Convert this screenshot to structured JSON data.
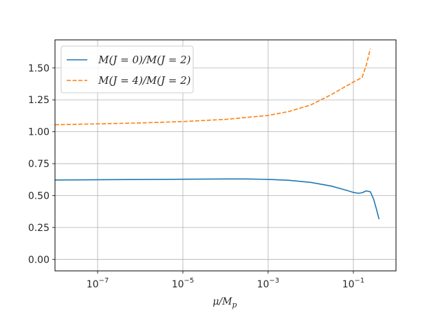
{
  "chart_data": {
    "type": "line",
    "xscale": "log",
    "xlim": [
      1e-08,
      1.0
    ],
    "ylim": [
      -0.09,
      1.72
    ],
    "xticks": [
      {
        "value": 1e-07,
        "base": "10",
        "exp": "−7"
      },
      {
        "value": 1e-05,
        "base": "10",
        "exp": "−5"
      },
      {
        "value": 0.001,
        "base": "10",
        "exp": "−3"
      },
      {
        "value": 0.1,
        "base": "10",
        "exp": "−1"
      }
    ],
    "yticks": [
      0.0,
      0.25,
      0.5,
      0.75,
      1.0,
      1.25,
      1.5
    ],
    "ytick_labels": [
      "0.00",
      "0.25",
      "0.50",
      "0.75",
      "1.00",
      "1.25",
      "1.50"
    ],
    "xlabel": {
      "main": "μ/M",
      "sub": "p"
    },
    "ylabel": "",
    "grid": true,
    "legend_position": "upper-left",
    "series": [
      {
        "name": "M(J = 0)/M(J = 2)",
        "color": "#1f77b4",
        "style": "solid",
        "x": [
          1e-08,
          1e-07,
          1e-06,
          1e-05,
          0.0001,
          0.0003,
          0.001,
          0.003,
          0.01,
          0.03,
          0.06,
          0.1,
          0.13,
          0.16,
          0.2,
          0.25,
          0.3,
          0.35,
          0.4
        ],
        "y": [
          0.622,
          0.624,
          0.626,
          0.628,
          0.63,
          0.63,
          0.627,
          0.62,
          0.603,
          0.575,
          0.547,
          0.525,
          0.518,
          0.522,
          0.537,
          0.53,
          0.47,
          0.39,
          0.315
        ]
      },
      {
        "name": "M(J = 4)/M(J = 2)",
        "color": "#ff7f0e",
        "style": "dashed",
        "x": [
          1e-08,
          1e-07,
          1e-06,
          1e-05,
          0.0001,
          0.001,
          0.003,
          0.01,
          0.03,
          0.1,
          0.16,
          0.2,
          0.25
        ],
        "y": [
          1.055,
          1.062,
          1.069,
          1.08,
          1.097,
          1.128,
          1.158,
          1.21,
          1.29,
          1.39,
          1.425,
          1.52,
          1.65
        ]
      }
    ]
  }
}
